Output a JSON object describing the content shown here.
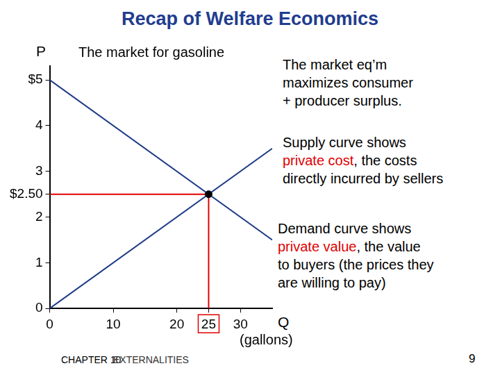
{
  "slide_title": "Recap of Welfare Economics",
  "chart_data": {
    "type": "line",
    "title": "The market for gasoline",
    "y_label": "P",
    "x_label": [
      "Q",
      "(gallons)"
    ],
    "x": [
      0,
      35
    ],
    "series": [
      {
        "color": "#1f3c88",
        "values": [
          5,
          1.5
        ]
      },
      {
        "color": "#1f3c88",
        "values": [
          0,
          3.5
        ]
      }
    ],
    "equilibrium": {
      "x": 25,
      "y": 2.5,
      "color": "#e00000"
    },
    "xlim": [
      0,
      35
    ],
    "xticks": [
      0,
      10,
      20,
      25,
      30
    ],
    "ylim": [
      0,
      5.3
    ],
    "yticks": [
      0,
      1,
      2,
      {
        "value": 2.5,
        "label": "$2.50"
      },
      3,
      4,
      {
        "value": 5,
        "label": "$5"
      }
    ],
    "grid": false,
    "annotations": [
      [
        [
          {
            "text": "The market eq’m"
          }
        ],
        [
          {
            "text": "maximizes consumer"
          }
        ],
        [
          {
            "text": "+ producer surplus."
          }
        ]
      ],
      [
        [
          {
            "text": "Supply curve shows"
          }
        ],
        [
          {
            "text": "private cost",
            "color": "#e00000"
          },
          {
            "text": ", the costs"
          }
        ],
        [
          {
            "text": "directly incurred by sellers"
          }
        ]
      ],
      [
        [
          {
            "text": "Demand curve shows"
          }
        ],
        [
          {
            "text": "private value",
            "color": "#e00000"
          },
          {
            "text": ", the value"
          }
        ],
        [
          {
            "text": "to buyers (the prices they"
          }
        ],
        [
          {
            "text": "are willing to pay)"
          }
        ]
      ]
    ]
  },
  "footer": {
    "chapter": "CHAPTER 10",
    "topic": "EXTERNALITIES",
    "page": "9"
  }
}
